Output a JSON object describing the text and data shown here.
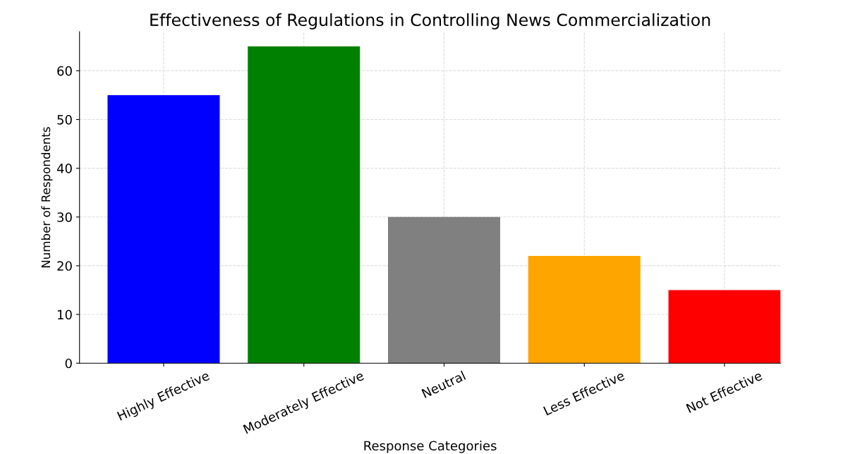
{
  "chart_data": {
    "type": "bar",
    "title": "Effectiveness of Regulations in Controlling News Commercialization",
    "xlabel": "Response Categories",
    "ylabel": "Number of Respondents",
    "categories": [
      "Highly Effective",
      "Moderately Effective",
      "Neutral",
      "Less Effective",
      "Not Effective"
    ],
    "values": [
      55,
      65,
      30,
      22,
      15
    ],
    "colors": [
      "#0000ff",
      "#008000",
      "#808080",
      "#ffa500",
      "#ff0000"
    ],
    "ylim": [
      0,
      68
    ],
    "yticks": [
      0,
      10,
      20,
      30,
      40,
      50,
      60
    ],
    "grid": true
  }
}
